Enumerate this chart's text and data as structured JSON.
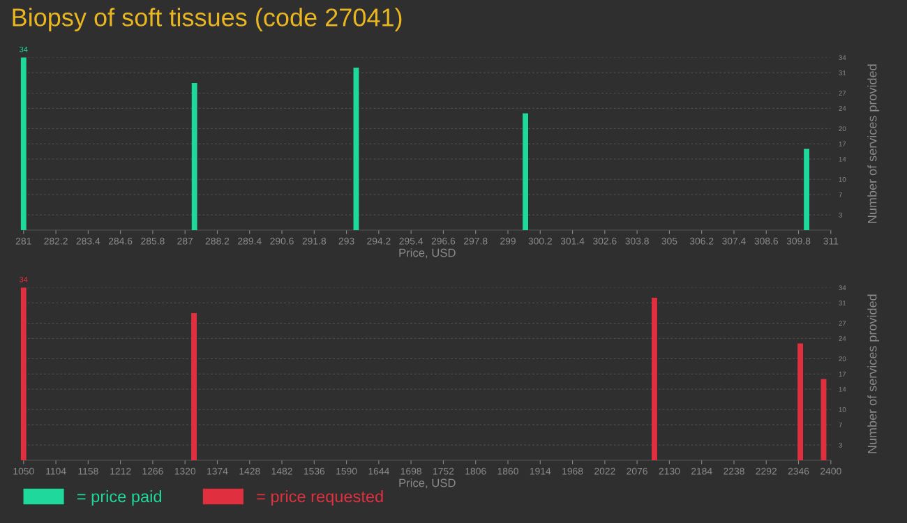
{
  "chart_data": [
    {
      "type": "bar",
      "title": "Biopsy of soft tissues (code 27041)",
      "xlabel": "Price, USD",
      "y2label": "Number of services provided",
      "x": [
        281,
        287.35,
        293.36,
        299.65,
        310.1
      ],
      "series": [
        {
          "name": "= price paid",
          "color": "#1fd89c",
          "axis": "y2",
          "values": [
            34,
            29,
            32,
            23,
            16
          ],
          "value_labels": [
            "34",
            null,
            null,
            null,
            null
          ]
        }
      ],
      "xlim": [
        281,
        311
      ],
      "xticks": [
        281,
        282.2,
        283.4,
        284.6,
        285.8,
        287,
        288.2,
        289.4,
        290.6,
        291.8,
        293,
        294.2,
        295.4,
        296.6,
        297.8,
        299,
        300.2,
        301.4,
        302.6,
        303.8,
        305,
        306.2,
        307.4,
        308.6,
        309.8,
        311
      ],
      "y2lim": [
        0,
        34
      ],
      "y2ticks": [
        3,
        7,
        10,
        14,
        17,
        20,
        24,
        27,
        31,
        34
      ],
      "grid": "y",
      "legend": "bottom"
    },
    {
      "type": "bar",
      "xlabel": "Price, USD",
      "y2label": "Number of services provided",
      "x": [
        1050,
        1335,
        2105,
        2349,
        2388
      ],
      "series": [
        {
          "name": "= price requested",
          "color": "#e0303f",
          "axis": "y2",
          "values": [
            34,
            29,
            32,
            23,
            16
          ],
          "value_labels": [
            "34",
            null,
            null,
            null,
            null
          ]
        }
      ],
      "xlim": [
        1050,
        2400
      ],
      "xticks": [
        1050,
        1104,
        1158,
        1212,
        1266,
        1320,
        1374,
        1428,
        1482,
        1536,
        1590,
        1644,
        1698,
        1752,
        1806,
        1860,
        1914,
        1968,
        2022,
        2076,
        2130,
        2184,
        2238,
        2292,
        2346,
        2400
      ],
      "y2lim": [
        0,
        34
      ],
      "y2ticks": [
        3,
        7,
        10,
        14,
        17,
        20,
        24,
        27,
        31,
        34
      ],
      "grid": "y",
      "legend": "bottom"
    }
  ]
}
